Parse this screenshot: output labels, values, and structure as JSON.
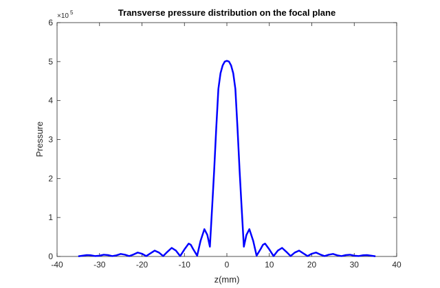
{
  "chart_data": {
    "type": "line",
    "title": "Transverse pressure distribution on the focal plane",
    "xlabel": "z(mm)",
    "ylabel": "Pressure",
    "y_exponent_label": "×10",
    "y_exponent_power": "5",
    "xlim": [
      -40,
      40
    ],
    "ylim": [
      0,
      6
    ],
    "x_ticks": [
      -40,
      -30,
      -20,
      -10,
      0,
      10,
      20,
      30,
      40
    ],
    "y_ticks": [
      0,
      1,
      2,
      3,
      4,
      5,
      6
    ],
    "grid": false,
    "legend": "none",
    "series": [
      {
        "color": "#0000ff",
        "x": [
          -35,
          -34,
          -33,
          -32,
          -31,
          -30,
          -29,
          -28,
          -27,
          -26,
          -25,
          -24,
          -23,
          -22,
          -21,
          -20,
          -19,
          -18,
          -17,
          -16,
          -15,
          -14,
          -13,
          -12,
          -11,
          -10,
          -9,
          -8.5,
          -8,
          -7,
          -6.2,
          -5.3,
          -4.6,
          -4,
          -3.4,
          -3,
          -2.5,
          -2,
          -1.5,
          -1,
          -0.5,
          0,
          0.5,
          1,
          1.5,
          2,
          2.5,
          3,
          3.4,
          4,
          4.6,
          5.3,
          6.2,
          7,
          8,
          8.5,
          9,
          10,
          11,
          12,
          13,
          14,
          15,
          16,
          17,
          18,
          19,
          20,
          21,
          22,
          23,
          24,
          25,
          26,
          27,
          28,
          29,
          30,
          31,
          32,
          33,
          34,
          35
        ],
        "values": [
          0.005,
          0.02,
          0.035,
          0.03,
          0.01,
          0.02,
          0.045,
          0.035,
          0.01,
          0.03,
          0.065,
          0.045,
          0.01,
          0.05,
          0.1,
          0.07,
          0.01,
          0.08,
          0.15,
          0.1,
          0.01,
          0.12,
          0.22,
          0.15,
          0.01,
          0.18,
          0.33,
          0.3,
          0.2,
          0.02,
          0.4,
          0.7,
          0.55,
          0.25,
          1.4,
          2.2,
          3.3,
          4.3,
          4.7,
          4.9,
          5.0,
          5.02,
          5.0,
          4.9,
          4.7,
          4.3,
          3.3,
          2.2,
          1.4,
          0.25,
          0.55,
          0.7,
          0.4,
          0.02,
          0.2,
          0.3,
          0.33,
          0.18,
          0.01,
          0.15,
          0.22,
          0.12,
          0.01,
          0.1,
          0.15,
          0.08,
          0.01,
          0.07,
          0.1,
          0.05,
          0.01,
          0.045,
          0.065,
          0.03,
          0.01,
          0.035,
          0.045,
          0.02,
          0.01,
          0.03,
          0.035,
          0.02,
          0.005
        ]
      }
    ]
  }
}
